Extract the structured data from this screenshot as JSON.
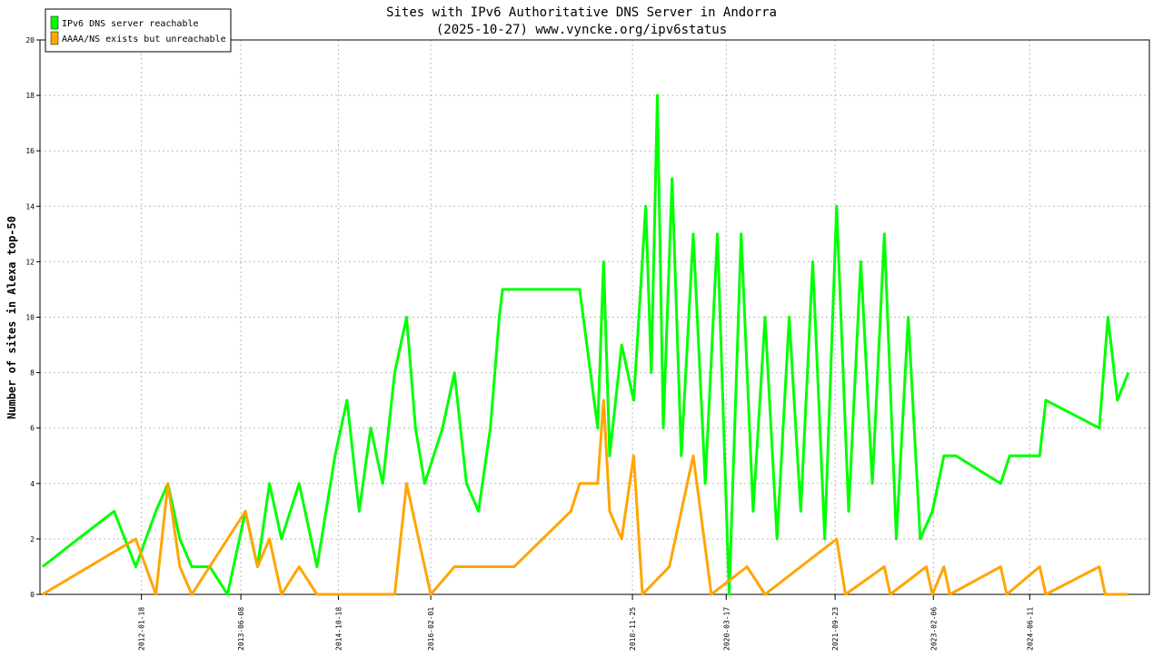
{
  "chart_data": {
    "type": "line",
    "title": "Sites with IPv6 Authoritative DNS Server in Andorra",
    "subtitle": "(2025-10-27) www.vyncke.org/ipv6status",
    "y_label": "Number of sites in Alexa top-50",
    "xlim": [
      "2010-08-19",
      "2026-02-11"
    ],
    "xticks": [
      "2012-01-18",
      "2013-06-08",
      "2014-10-18",
      "2016-02-01",
      "2018-11-25",
      "2020-03-17",
      "2021-09-23",
      "2023-02-06",
      "2024-06-11"
    ],
    "ylim": [
      0,
      20
    ],
    "yticks": [
      0,
      2,
      4,
      6,
      8,
      10,
      12,
      14,
      16,
      18,
      20
    ],
    "grid": true,
    "legend": "top-left",
    "series": [
      {
        "name": "IPv6 DNS server reachable",
        "color": "#00ff00",
        "x": [
          "2010-09-01",
          "2011-03-01",
          "2011-09-01",
          "2011-12-20",
          "2012-04-01",
          "2012-06-01",
          "2012-08-01",
          "2012-10-01",
          "2013-01-01",
          "2013-04-01",
          "2013-07-01",
          "2013-09-01",
          "2013-11-01",
          "2014-01-01",
          "2014-04-01",
          "2014-07-01",
          "2014-10-01",
          "2014-12-01",
          "2015-02-01",
          "2015-04-01",
          "2015-06-01",
          "2015-08-01",
          "2015-10-01",
          "2015-11-15",
          "2016-01-01",
          "2016-04-01",
          "2016-06-01",
          "2016-08-01",
          "2016-10-01",
          "2016-12-01",
          "2017-01-15",
          "2017-02-01",
          "2018-03-01",
          "2018-06-01",
          "2018-07-01",
          "2018-08-01",
          "2018-10-01",
          "2018-12-01",
          "2019-02-01",
          "2019-03-01",
          "2019-04-01",
          "2019-05-01",
          "2019-06-15",
          "2019-08-01",
          "2019-10-01",
          "2019-12-01",
          "2020-02-01",
          "2020-04-01",
          "2020-06-01",
          "2020-08-01",
          "2020-10-01",
          "2020-12-01",
          "2021-02-01",
          "2021-04-01",
          "2021-06-01",
          "2021-08-01",
          "2021-10-01",
          "2021-12-01",
          "2022-02-01",
          "2022-04-01",
          "2022-06-01",
          "2022-08-01",
          "2022-10-01",
          "2022-12-01",
          "2023-02-01",
          "2023-04-01",
          "2023-06-01",
          "2024-01-15",
          "2024-03-01",
          "2024-08-01",
          "2024-09-01",
          "2025-06-01",
          "2025-07-15",
          "2025-09-01",
          "2025-10-27"
        ],
        "values": [
          1,
          2,
          3,
          1,
          3,
          4,
          2,
          1,
          1,
          0,
          3,
          1,
          4,
          2,
          4,
          1,
          5,
          7,
          3,
          6,
          4,
          8,
          10,
          6,
          4,
          6,
          8,
          4,
          3,
          6,
          10,
          11,
          11,
          6,
          12,
          5,
          9,
          7,
          14,
          8,
          18,
          6,
          15,
          5,
          13,
          4,
          13,
          0,
          13,
          3,
          10,
          2,
          10,
          3,
          12,
          2,
          14,
          3,
          12,
          4,
          13,
          2,
          10,
          2,
          3,
          5,
          5,
          4,
          5,
          5,
          7,
          6,
          10,
          7,
          8
        ]
      },
      {
        "name": "AAAA/NS exists but unreachable",
        "color": "#ffa500",
        "x": [
          "2010-09-01",
          "2011-12-20",
          "2012-04-01",
          "2012-06-01",
          "2012-08-01",
          "2012-10-01",
          "2013-07-01",
          "2013-09-01",
          "2013-11-01",
          "2014-01-01",
          "2014-04-01",
          "2014-07-01",
          "2015-08-01",
          "2015-10-01",
          "2015-12-01",
          "2016-02-01",
          "2016-06-01",
          "2017-01-15",
          "2017-04-01",
          "2018-01-15",
          "2018-03-01",
          "2018-06-01",
          "2018-07-01",
          "2018-08-01",
          "2018-10-01",
          "2018-12-01",
          "2019-01-15",
          "2019-06-01",
          "2019-10-01",
          "2020-01-01",
          "2020-07-01",
          "2020-10-01",
          "2021-10-01",
          "2021-11-15",
          "2022-06-01",
          "2022-07-01",
          "2023-01-01",
          "2023-02-01",
          "2023-04-01",
          "2023-05-01",
          "2024-01-15",
          "2024-02-15",
          "2024-08-01",
          "2024-09-01",
          "2025-06-01",
          "2025-07-01",
          "2025-10-27"
        ],
        "values": [
          0,
          2,
          0,
          4,
          1,
          0,
          3,
          1,
          2,
          0,
          1,
          0,
          0,
          4,
          2,
          0,
          1,
          1,
          1,
          3,
          4,
          4,
          7,
          3,
          2,
          5,
          0,
          1,
          5,
          0,
          1,
          0,
          2,
          0,
          1,
          0,
          1,
          0,
          1,
          0,
          1,
          0,
          1,
          0,
          1,
          0,
          0
        ]
      }
    ]
  }
}
